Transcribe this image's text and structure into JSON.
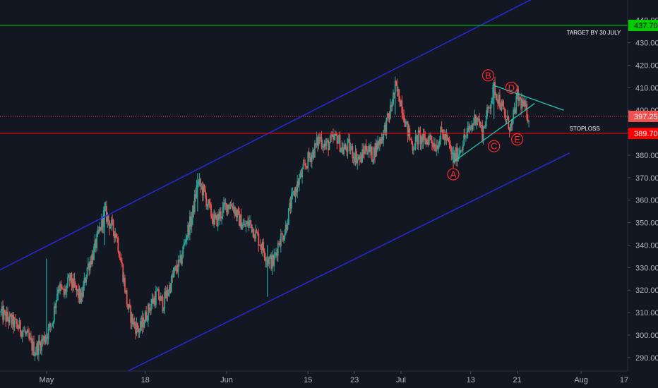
{
  "colors": {
    "background": "#131722",
    "axis_text": "#b2b5be",
    "candle_up": "#26a69a",
    "candle_down": "#ef5350",
    "channel": "#2828d8",
    "target_line": "#00cc00",
    "stoploss_line": "#ff0000",
    "current_price_line": "#ef5350",
    "triangle": "#26c6b4",
    "wave_labels": "#ff2b2b"
  },
  "chart_data": {
    "type": "candlestick",
    "ylim": [
      284,
      449
    ],
    "yticks": [
      290,
      300,
      310,
      320,
      330,
      340,
      350,
      360,
      370,
      380,
      390,
      400,
      410,
      420,
      430,
      440
    ],
    "ytick_labels": [
      "290.00",
      "300.00",
      "310.00",
      "320.00",
      "330.00",
      "340.00",
      "350.00",
      "360.00",
      "370.00",
      "380.00",
      "390.00",
      "400.00",
      "410.00",
      "420.00",
      "430.00",
      "440.00"
    ],
    "x_range_days": [
      -4,
      104
    ],
    "xticks": [
      {
        "label": "May",
        "day": 4
      },
      {
        "label": "18",
        "day": 21
      },
      {
        "label": "Jun",
        "day": 35
      },
      {
        "label": "15",
        "day": 49
      },
      {
        "label": "23",
        "day": 57
      },
      {
        "label": "Jul",
        "day": 65
      },
      {
        "label": "13",
        "day": 77
      },
      {
        "label": "21",
        "day": 85
      },
      {
        "label": "Aug",
        "day": 96
      },
      {
        "label": "17",
        "day": 112
      }
    ],
    "price_path": [
      [
        -4,
        310
      ],
      [
        0,
        302
      ],
      [
        2,
        293
      ],
      [
        4,
        300
      ],
      [
        5,
        306
      ],
      [
        6,
        322
      ],
      [
        7,
        318
      ],
      [
        8,
        325
      ],
      [
        9,
        320
      ],
      [
        10,
        316
      ],
      [
        11,
        330
      ],
      [
        12,
        336
      ],
      [
        13,
        345
      ],
      [
        14,
        355
      ],
      [
        15,
        349
      ],
      [
        16,
        345
      ],
      [
        17,
        330
      ],
      [
        18,
        312
      ],
      [
        19,
        305
      ],
      [
        20,
        302
      ],
      [
        21,
        308
      ],
      [
        22,
        314
      ],
      [
        23,
        318
      ],
      [
        24,
        314
      ],
      [
        25,
        320
      ],
      [
        26,
        328
      ],
      [
        27,
        332
      ],
      [
        28,
        344
      ],
      [
        29,
        352
      ],
      [
        30,
        368
      ],
      [
        31,
        364
      ],
      [
        32,
        356
      ],
      [
        33,
        350
      ],
      [
        34,
        354
      ],
      [
        35,
        358
      ],
      [
        36,
        358
      ],
      [
        37,
        352
      ],
      [
        38,
        348
      ],
      [
        39,
        350
      ],
      [
        40,
        345
      ],
      [
        41,
        340
      ],
      [
        42,
        334
      ],
      [
        43,
        332
      ],
      [
        44,
        342
      ],
      [
        45,
        346
      ],
      [
        46,
        358
      ],
      [
        47,
        366
      ],
      [
        48,
        372
      ],
      [
        49,
        378
      ],
      [
        50,
        382
      ],
      [
        51,
        388
      ],
      [
        52,
        384
      ],
      [
        53,
        386
      ],
      [
        54,
        388
      ],
      [
        55,
        382
      ],
      [
        56,
        384
      ],
      [
        57,
        380
      ],
      [
        58,
        378
      ],
      [
        59,
        384
      ],
      [
        60,
        380
      ],
      [
        61,
        385
      ],
      [
        62,
        390
      ],
      [
        63,
        398
      ],
      [
        64,
        410
      ],
      [
        65,
        404
      ],
      [
        66,
        392
      ],
      [
        67,
        384
      ],
      [
        68,
        388
      ],
      [
        69,
        386
      ],
      [
        70,
        388
      ],
      [
        71,
        384
      ],
      [
        72,
        390
      ],
      [
        73,
        386
      ],
      [
        74,
        378
      ],
      [
        75,
        382
      ],
      [
        76,
        388
      ],
      [
        77,
        392
      ],
      [
        78,
        398
      ],
      [
        79,
        390
      ],
      [
        80,
        400
      ],
      [
        81,
        410
      ],
      [
        82,
        404
      ],
      [
        83,
        396
      ],
      [
        84,
        392
      ],
      [
        85,
        406
      ],
      [
        86,
        402
      ],
      [
        87,
        397
      ]
    ],
    "wicks": [
      {
        "day": 4,
        "high": 334,
        "low": 296
      },
      {
        "day": 14,
        "high": 359,
        "low": 340
      },
      {
        "day": 30,
        "high": 372,
        "low": 355
      },
      {
        "day": 42,
        "high": 340,
        "low": 317
      },
      {
        "day": 64,
        "high": 412,
        "low": 398
      },
      {
        "day": 74,
        "high": 384,
        "low": 377
      },
      {
        "day": 81,
        "high": 410,
        "low": 396
      }
    ],
    "levels": [
      {
        "name": "target",
        "price": 437.7,
        "label": "437.70",
        "annotation": "TARGET BY 30 JULY"
      },
      {
        "name": "stoploss",
        "price": 389.7,
        "label": "389.70",
        "annotation": "STOPLOSS"
      },
      {
        "name": "last-price",
        "price": 397.25,
        "label": "397.25",
        "annotation": ""
      }
    ],
    "channel": {
      "upper": [
        [
          -4,
          329
        ],
        [
          88,
          450
        ]
      ],
      "lower": [
        [
          18,
          284
        ],
        [
          94,
          381
        ]
      ]
    },
    "triangle": {
      "upper": [
        [
          81,
          411
        ],
        [
          93,
          400
        ]
      ],
      "lower": [
        [
          74,
          377
        ],
        [
          88,
          403
        ]
      ]
    },
    "wave_points": [
      {
        "label": "A",
        "day": 74,
        "price": 371.5
      },
      {
        "label": "B",
        "day": 80,
        "price": 415.5
      },
      {
        "label": "C",
        "day": 81,
        "price": 384
      },
      {
        "label": "D",
        "day": 84,
        "price": 410
      },
      {
        "label": "E",
        "day": 85,
        "price": 387
      }
    ]
  }
}
